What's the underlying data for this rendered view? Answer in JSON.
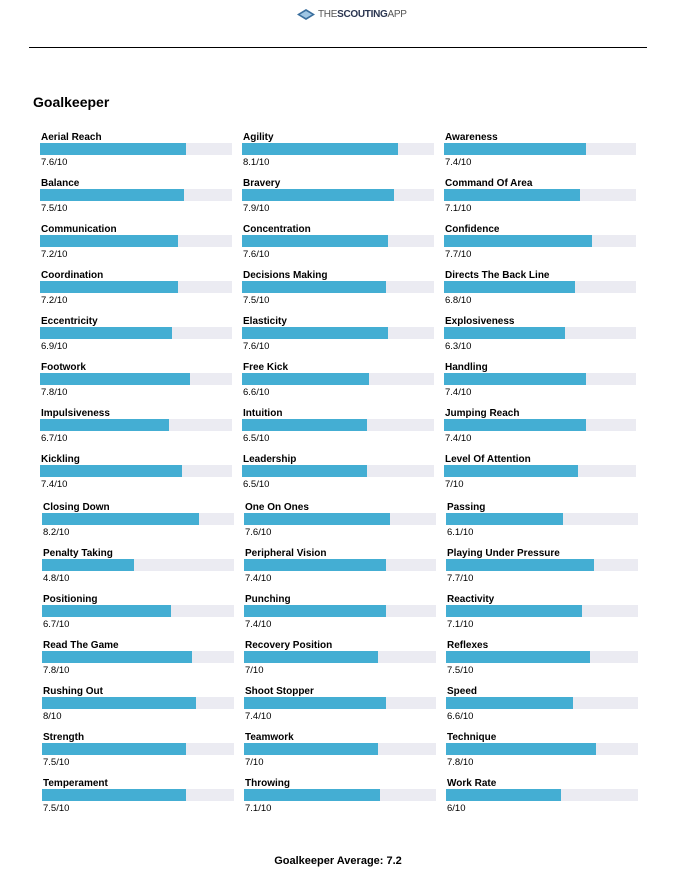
{
  "logo": {
    "text_light": "THE",
    "text_bold": "SCOUTING",
    "text_end": "APP"
  },
  "section_title": "Goalkeeper",
  "colors": {
    "bar_fill": "#44aed3",
    "bar_track": "#ebebf2"
  },
  "group1": [
    {
      "label": "Aerial Reach",
      "value": 7.6,
      "text": "7.6/10"
    },
    {
      "label": "Agility",
      "value": 8.1,
      "text": "8.1/10"
    },
    {
      "label": "Awareness",
      "value": 7.4,
      "text": "7.4/10"
    },
    {
      "label": "Balance",
      "value": 7.5,
      "text": "7.5/10"
    },
    {
      "label": "Bravery",
      "value": 7.9,
      "text": "7.9/10"
    },
    {
      "label": "Command Of Area",
      "value": 7.1,
      "text": "7.1/10"
    },
    {
      "label": "Communication",
      "value": 7.2,
      "text": "7.2/10"
    },
    {
      "label": "Concentration",
      "value": 7.6,
      "text": "7.6/10"
    },
    {
      "label": "Confidence",
      "value": 7.7,
      "text": "7.7/10"
    },
    {
      "label": "Coordination",
      "value": 7.2,
      "text": "7.2/10"
    },
    {
      "label": "Decisions Making",
      "value": 7.5,
      "text": "7.5/10"
    },
    {
      "label": "Directs The Back Line",
      "value": 6.8,
      "text": "6.8/10"
    },
    {
      "label": "Eccentricity",
      "value": 6.9,
      "text": "6.9/10"
    },
    {
      "label": "Elasticity",
      "value": 7.6,
      "text": "7.6/10"
    },
    {
      "label": "Explosiveness",
      "value": 6.3,
      "text": "6.3/10"
    },
    {
      "label": "Footwork",
      "value": 7.8,
      "text": "7.8/10"
    },
    {
      "label": "Free Kick",
      "value": 6.6,
      "text": "6.6/10"
    },
    {
      "label": "Handling",
      "value": 7.4,
      "text": "7.4/10"
    },
    {
      "label": "Impulsiveness",
      "value": 6.7,
      "text": "6.7/10"
    },
    {
      "label": "Intuition",
      "value": 6.5,
      "text": "6.5/10"
    },
    {
      "label": "Jumping Reach",
      "value": 7.4,
      "text": "7.4/10"
    },
    {
      "label": "Kickling",
      "value": 7.4,
      "text": "7.4/10"
    },
    {
      "label": "Leadership",
      "value": 6.5,
      "text": "6.5/10"
    },
    {
      "label": "Level Of Attention",
      "value": 7,
      "text": "7/10"
    }
  ],
  "group2": [
    {
      "label": "Closing Down",
      "value": 8.2,
      "text": "8.2/10"
    },
    {
      "label": "One On Ones",
      "value": 7.6,
      "text": "7.6/10"
    },
    {
      "label": "Passing",
      "value": 6.1,
      "text": "6.1/10"
    },
    {
      "label": "Penalty Taking",
      "value": 4.8,
      "text": "4.8/10"
    },
    {
      "label": "Peripheral Vision",
      "value": 7.4,
      "text": "7.4/10"
    },
    {
      "label": "Playing Under Pressure",
      "value": 7.7,
      "text": "7.7/10"
    },
    {
      "label": "Positioning",
      "value": 6.7,
      "text": "6.7/10"
    },
    {
      "label": "Punching",
      "value": 7.4,
      "text": "7.4/10"
    },
    {
      "label": "Reactivity",
      "value": 7.1,
      "text": "7.1/10"
    },
    {
      "label": "Read The Game",
      "value": 7.8,
      "text": "7.8/10"
    },
    {
      "label": "Recovery Position",
      "value": 7,
      "text": "7/10"
    },
    {
      "label": "Reflexes",
      "value": 7.5,
      "text": "7.5/10"
    },
    {
      "label": "Rushing Out",
      "value": 8,
      "text": "8/10"
    },
    {
      "label": "Shoot Stopper",
      "value": 7.4,
      "text": "7.4/10"
    },
    {
      "label": "Speed",
      "value": 6.6,
      "text": "6.6/10"
    },
    {
      "label": "Strength",
      "value": 7.5,
      "text": "7.5/10"
    },
    {
      "label": "Teamwork",
      "value": 7,
      "text": "7/10"
    },
    {
      "label": "Technique",
      "value": 7.8,
      "text": "7.8/10"
    },
    {
      "label": "Temperament",
      "value": 7.5,
      "text": "7.5/10"
    },
    {
      "label": "Throwing",
      "value": 7.1,
      "text": "7.1/10"
    },
    {
      "label": "Work Rate",
      "value": 6,
      "text": "6/10"
    }
  ],
  "average_text": "Goalkeeper Average: 7.2"
}
